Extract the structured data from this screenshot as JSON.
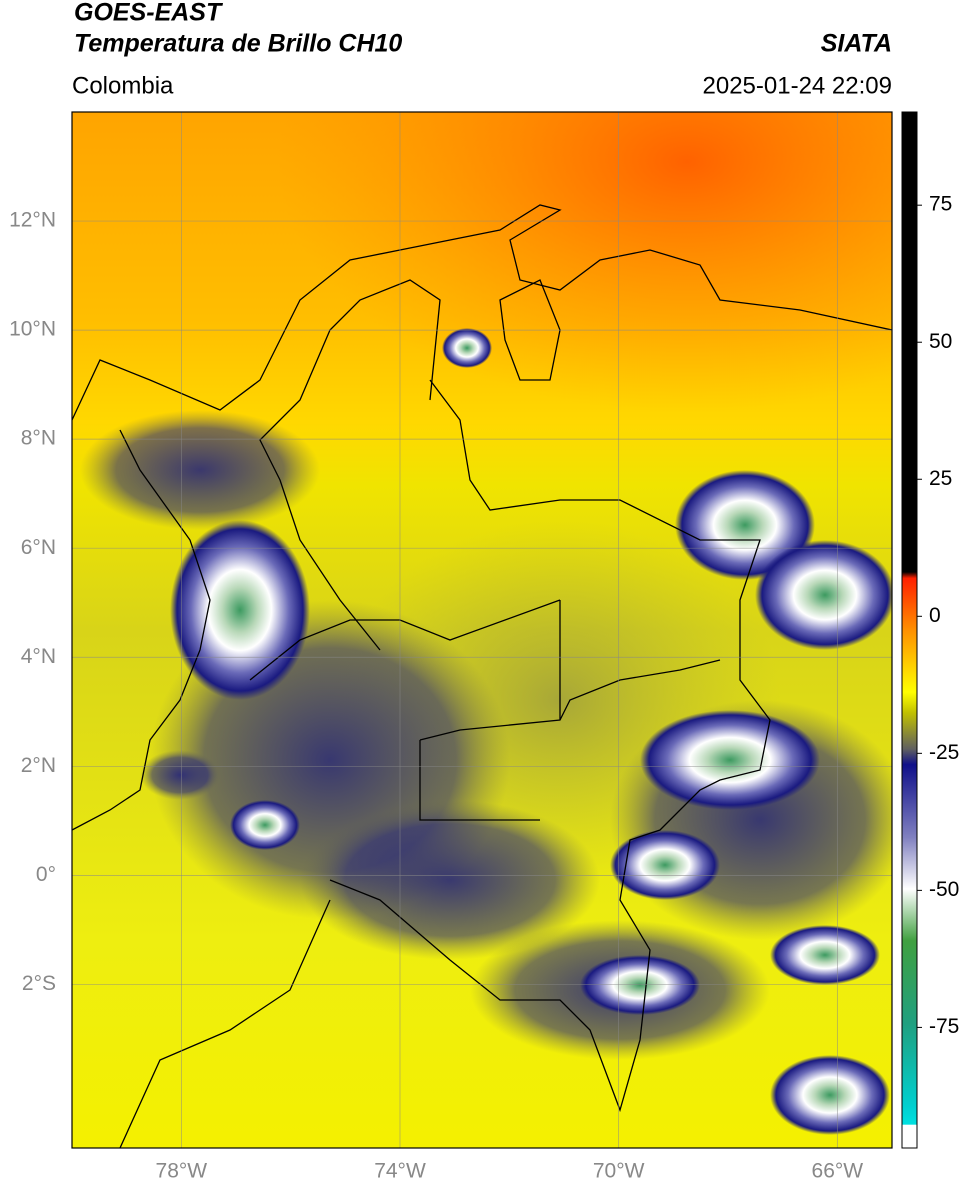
{
  "header": {
    "title": "GOES-EAST",
    "subtitle": "Temperatura de Brillo CH10",
    "source": "SIATA",
    "region": "Colombia",
    "datetime": "2025-01-24 22:09"
  },
  "map": {
    "lonlim": [
      -80,
      -65
    ],
    "latlim": [
      -5,
      14
    ],
    "lonticks": [
      {
        "value": -78,
        "label": "78°W"
      },
      {
        "value": -74,
        "label": "74°W"
      },
      {
        "value": -70,
        "label": "70°W"
      },
      {
        "value": -66,
        "label": "66°W"
      }
    ],
    "latticks": [
      {
        "value": 12,
        "label": "12°N"
      },
      {
        "value": 10,
        "label": "10°N"
      },
      {
        "value": 8,
        "label": "8°N"
      },
      {
        "value": 6,
        "label": "6°N"
      },
      {
        "value": 4,
        "label": "4°N"
      },
      {
        "value": 2,
        "label": "2°N"
      },
      {
        "value": 0,
        "label": "0°"
      },
      {
        "value": -2,
        "label": "2°S"
      }
    ],
    "grid": true
  },
  "colorbar": {
    "lim": [
      -97,
      92
    ],
    "ticks": [
      75,
      50,
      25,
      0,
      -25,
      -50,
      -75
    ]
  }
}
